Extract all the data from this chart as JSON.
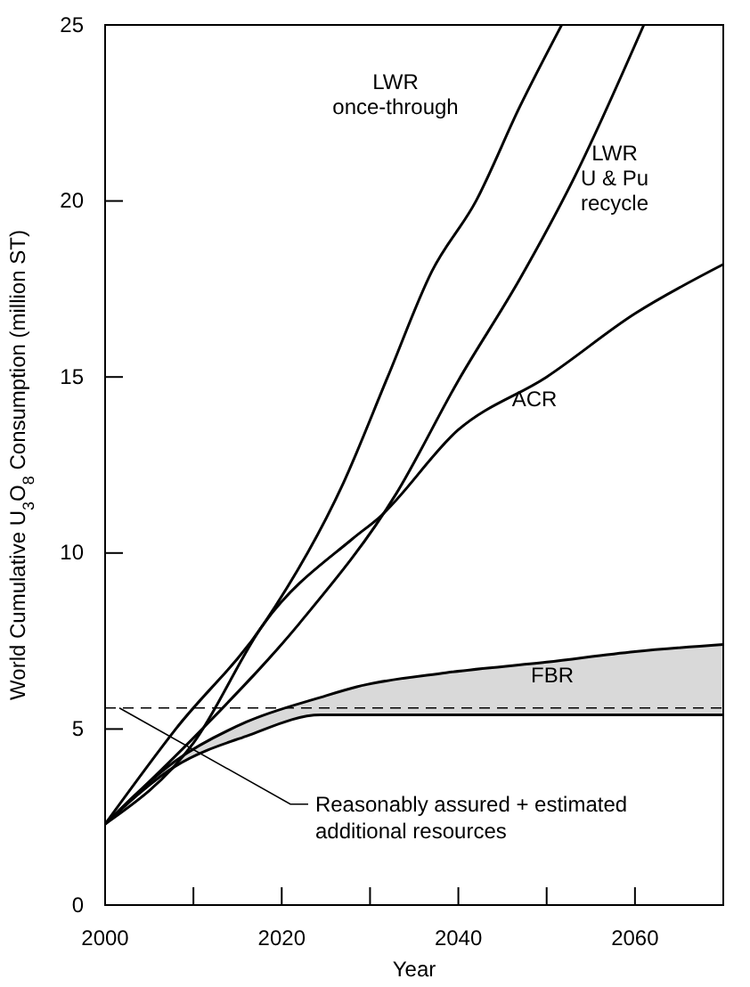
{
  "chart_data": {
    "type": "line",
    "xlabel": "Year",
    "ylabel": "World Cumulative U$_{3}$O$_{8}$ Consumption (million ST)",
    "xlim": [
      2000,
      2070
    ],
    "ylim": [
      0,
      25
    ],
    "xticks": [
      2000,
      {
        "value": 2010,
        "label": null
      },
      2020,
      {
        "value": 2030,
        "label": null
      },
      2040,
      {
        "value": 2050,
        "label": null
      },
      2060
    ],
    "yticks": [
      0,
      5,
      10,
      15,
      20,
      25
    ],
    "series": [
      {
        "name": "LWR once-through",
        "color": "#000000",
        "x": [
          2000,
          2008,
          2018,
          2027,
          2032,
          2037,
          2042,
          2047,
          2051.7
        ],
        "values": [
          2.3,
          5,
          8,
          12,
          15,
          18,
          20,
          22.7,
          25
        ]
      },
      {
        "name": "LWR U & Pu recycle",
        "color": "#000000",
        "x": [
          2000,
          2011,
          2022,
          2033,
          2040,
          2047,
          2053,
          2061
        ],
        "values": [
          2.3,
          5,
          8,
          11.7,
          14.9,
          17.8,
          20.6,
          25
        ]
      },
      {
        "name": "ACR",
        "color": "#000000",
        "x": [
          2000,
          2010,
          2018,
          2028,
          2031,
          2040,
          2050,
          2060,
          2070
        ],
        "values": [
          2.3,
          4.6,
          8,
          10.4,
          11,
          13.5,
          15,
          16.8,
          18.2
        ]
      },
      {
        "name": "FBR",
        "color": "#000000",
        "x": [
          2000,
          2008,
          2016,
          2024.4,
          2028.5,
          2038.6,
          2050,
          2060,
          2070
        ],
        "values": [
          2.3,
          4.1,
          5.2,
          5.9,
          6.2,
          6.6,
          6.9,
          7.2,
          7.4
        ],
        "lower": [
          2.3,
          3.95,
          4.8,
          5.4,
          5.4,
          5.4,
          5.4,
          5.4,
          5.4
        ],
        "upper": [
          2.3,
          4.1,
          5.2,
          5.9,
          6.2,
          6.6,
          6.9,
          7.2,
          7.4
        ]
      },
      {
        "color": "#000000",
        "x": [
          2000,
          2008,
          2016,
          2024.4,
          2028.5,
          2038.6,
          2050,
          2060,
          2070
        ],
        "values": [
          2.3,
          3.95,
          4.8,
          5.4,
          5.4,
          5.4,
          5.4,
          5.4,
          5.4
        ]
      }
    ],
    "ref_lines": [
      {
        "axis": "y",
        "value": 5.6,
        "label": "Reasonably assured + estimated additional resources",
        "line_style": "dashed"
      }
    ],
    "grid": false,
    "marker": "none",
    "line_style": "solid"
  }
}
